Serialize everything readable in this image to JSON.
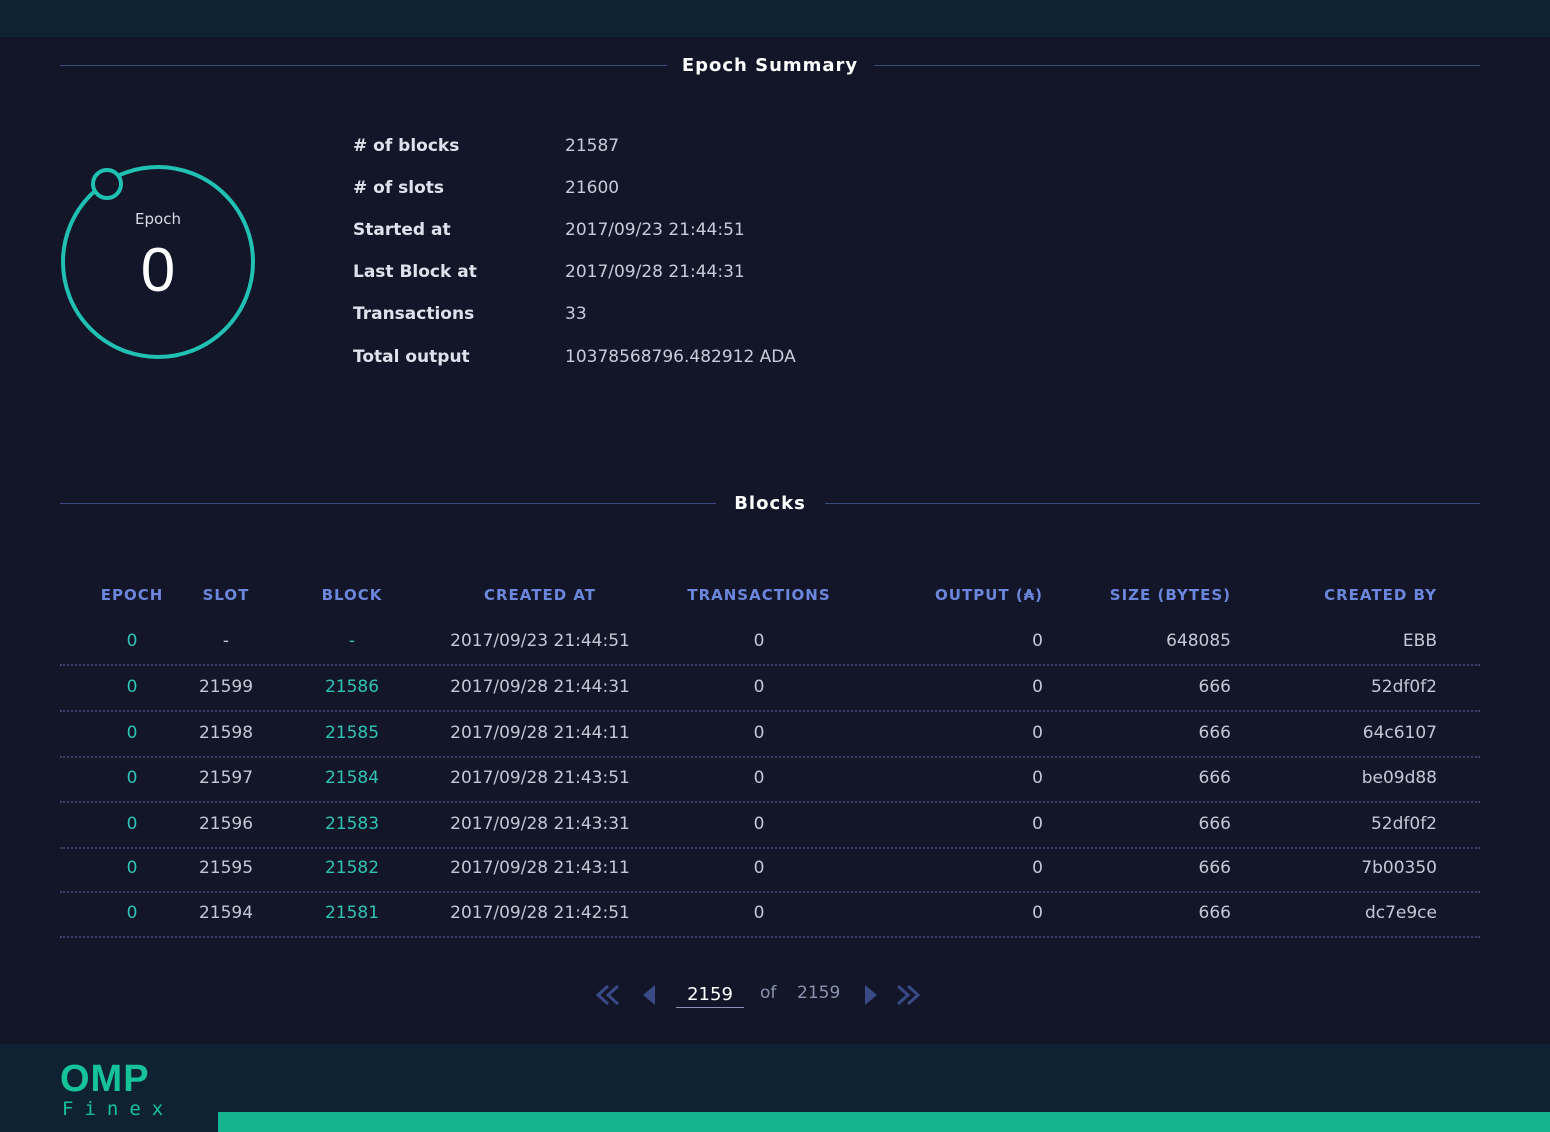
{
  "summary": {
    "title": "Epoch Summary",
    "epoch_label": "Epoch",
    "epoch_value": "0",
    "stats": [
      {
        "key": "# of blocks",
        "value": "21587"
      },
      {
        "key": "# of slots",
        "value": "21600"
      },
      {
        "key": "Started at",
        "value": "2017/09/23 21:44:51"
      },
      {
        "key": "Last Block at",
        "value": "2017/09/28 21:44:31"
      },
      {
        "key": "Transactions",
        "value": "33"
      },
      {
        "key": "Total output",
        "value": "10378568796.482912 ADA"
      }
    ]
  },
  "blocks": {
    "title": "Blocks",
    "columns": [
      "EPOCH",
      "SLOT",
      "BLOCK",
      "CREATED AT",
      "TRANSACTIONS",
      "OUTPUT (₳)",
      "SIZE (BYTES)",
      "CREATED BY"
    ],
    "rows": [
      [
        "0",
        "-",
        "-",
        "2017/09/23 21:44:51",
        "0",
        "0",
        "648085",
        "EBB"
      ],
      [
        "0",
        "21599",
        "21586",
        "2017/09/28 21:44:31",
        "0",
        "0",
        "666",
        "52df0f2"
      ],
      [
        "0",
        "21598",
        "21585",
        "2017/09/28 21:44:11",
        "0",
        "0",
        "666",
        "64c6107"
      ],
      [
        "0",
        "21597",
        "21584",
        "2017/09/28 21:43:51",
        "0",
        "0",
        "666",
        "be09d88"
      ],
      [
        "0",
        "21596",
        "21583",
        "2017/09/28 21:43:31",
        "0",
        "0",
        "666",
        "52df0f2"
      ],
      [
        "0",
        "21595",
        "21582",
        "2017/09/28 21:43:11",
        "0",
        "0",
        "666",
        "7b00350"
      ],
      [
        "0",
        "21594",
        "21581",
        "2017/09/28 21:42:51",
        "0",
        "0",
        "666",
        "dc7e9ce"
      ]
    ]
  },
  "pagination": {
    "current": "2159",
    "of_label": "of",
    "total": "2159"
  },
  "logo": {
    "main": "OMP",
    "sub": "Finex"
  },
  "colors": {
    "accent_teal": "#2fc3b5",
    "header_blue": "#6d86dd",
    "brand_green": "#15b48f"
  },
  "icons": {
    "first": "double-chevron-left-icon",
    "prev": "triangle-left-icon",
    "next": "triangle-right-icon",
    "last": "double-chevron-right-icon"
  }
}
